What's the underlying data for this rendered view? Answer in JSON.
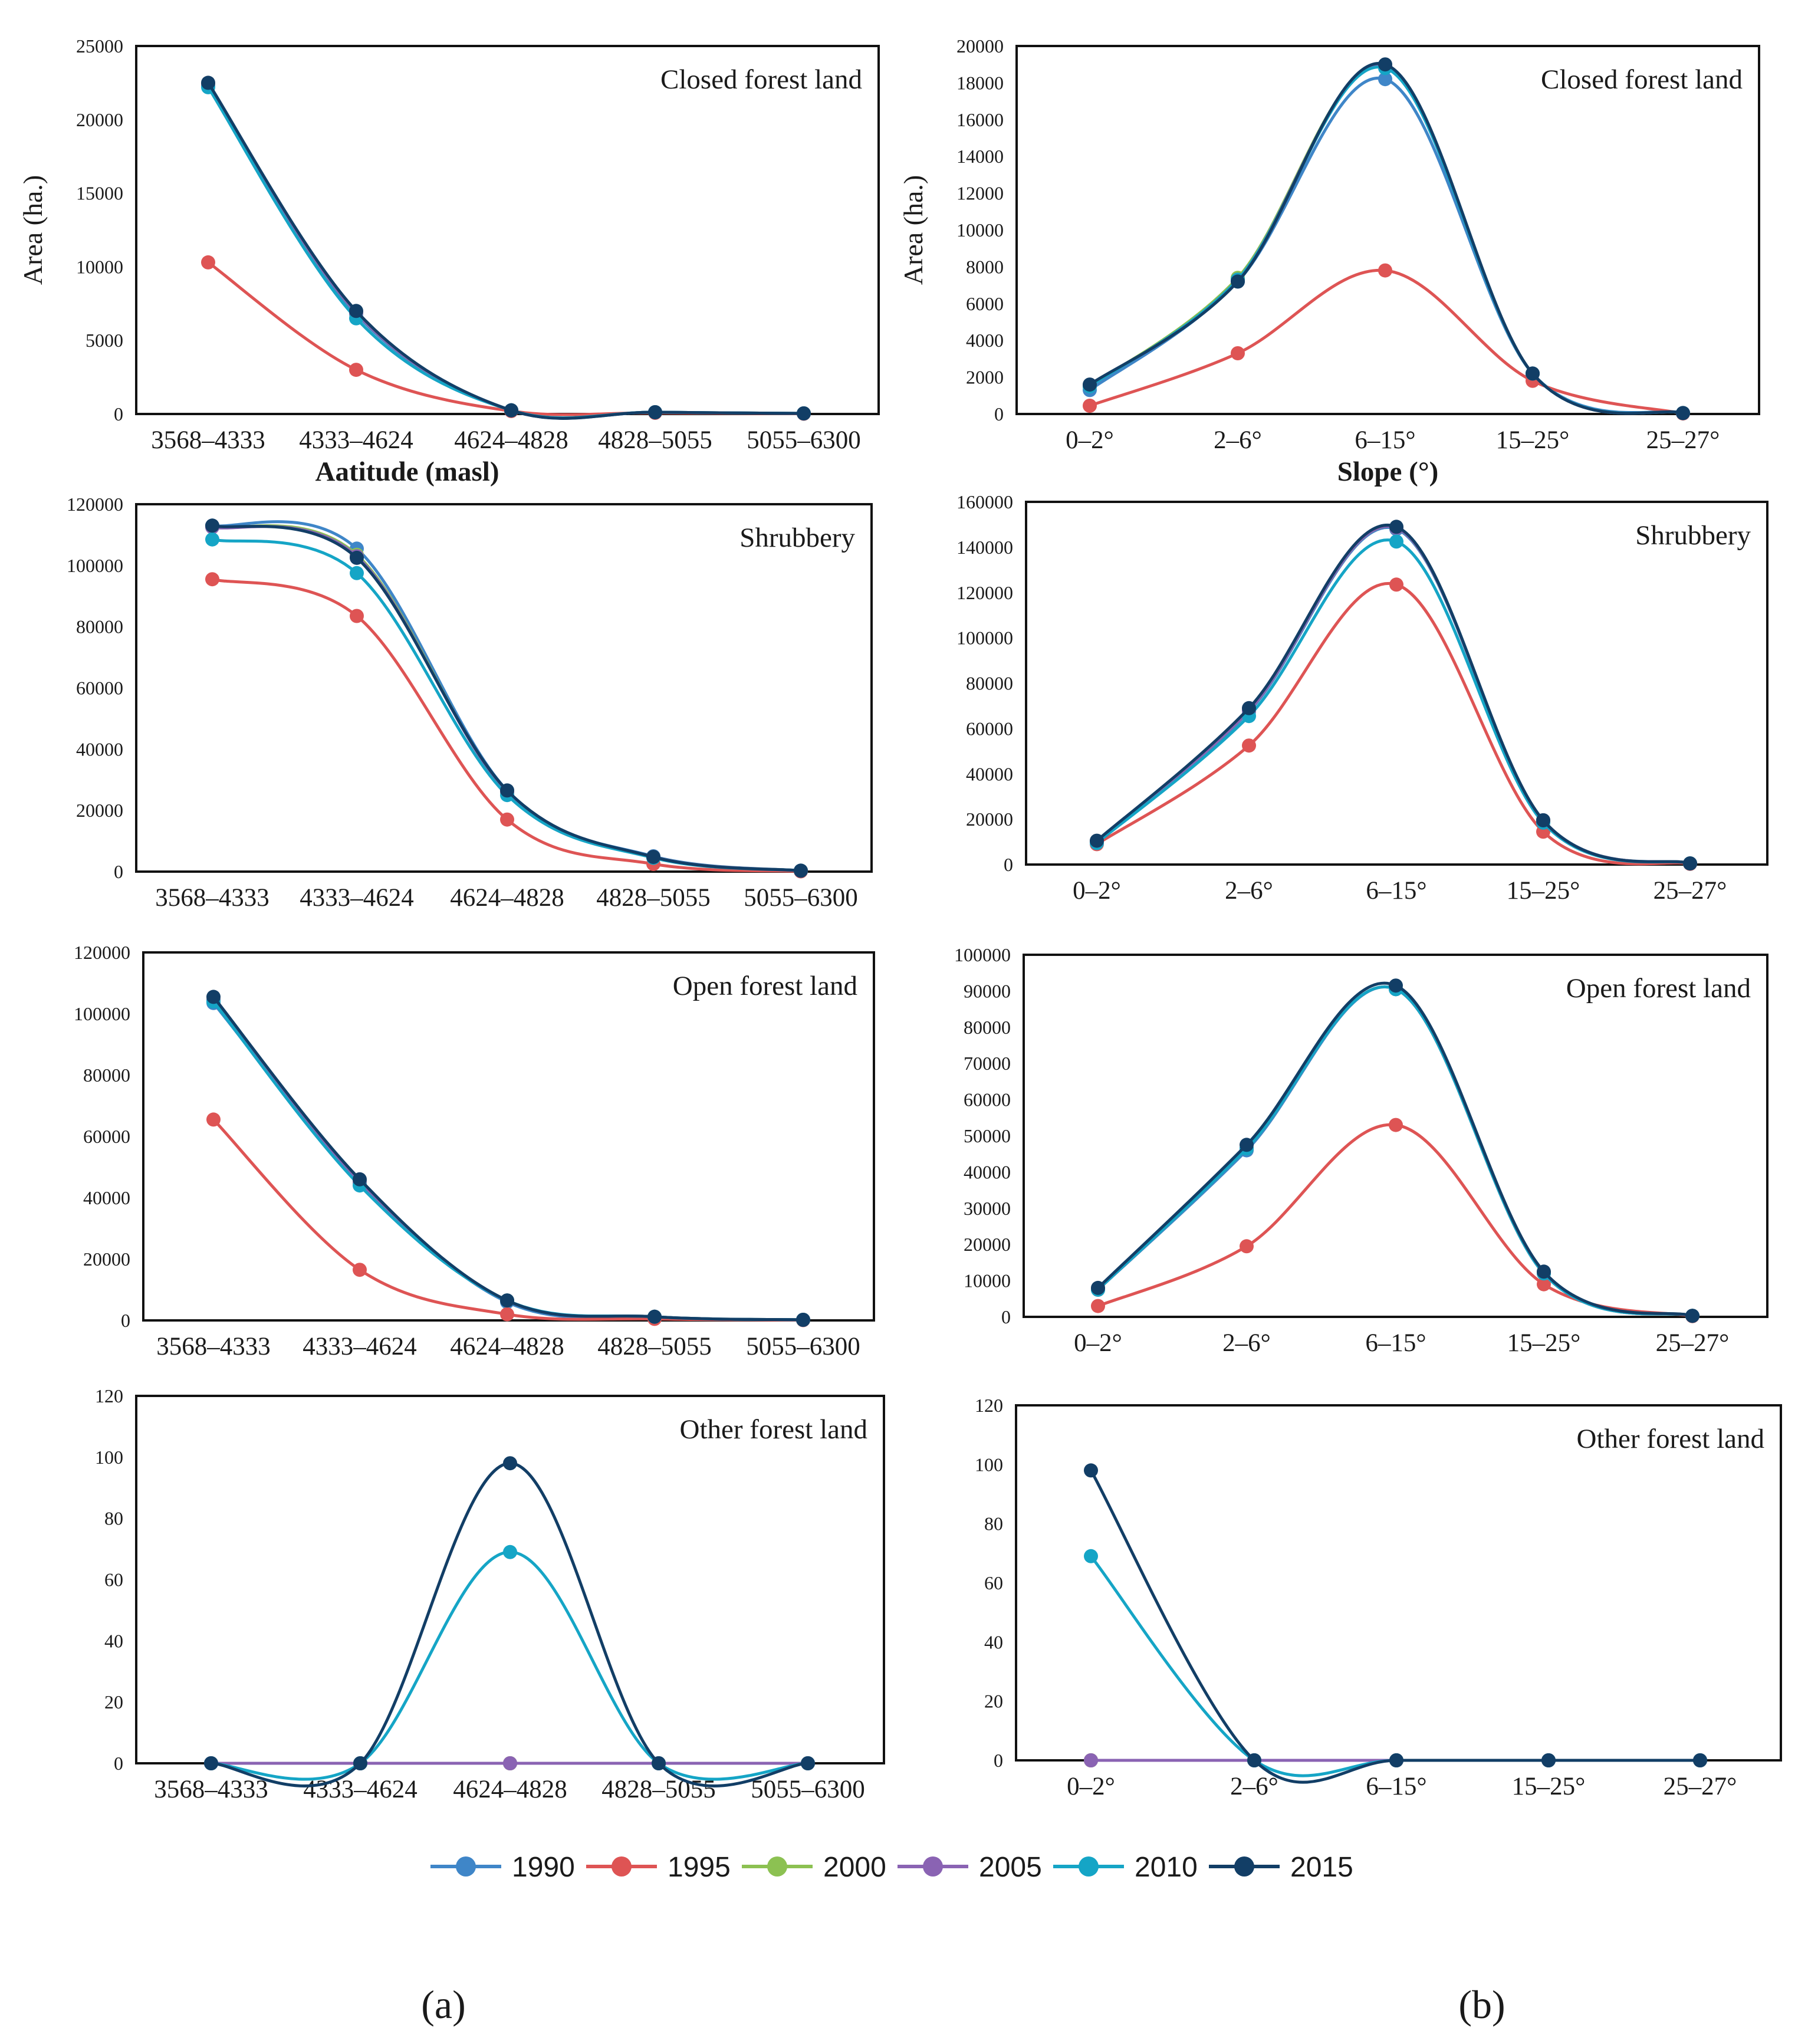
{
  "legend": {
    "items": [
      {
        "label": "1990",
        "color": "#3f86c8"
      },
      {
        "label": "1995",
        "color": "#de5454"
      },
      {
        "label": "2000",
        "color": "#8cc152"
      },
      {
        "label": "2005",
        "color": "#8a63b3"
      },
      {
        "label": "2010",
        "color": "#15a5c6"
      },
      {
        "label": "2015",
        "color": "#123e66"
      }
    ]
  },
  "panel_labels": {
    "a": "(a)",
    "b": "(b)"
  },
  "chart_data": [
    {
      "id": "a1",
      "type": "line",
      "title": "Closed forest land",
      "xlabel": "Aatitude (masl)",
      "ylabel": "Area (ha.)",
      "categories": [
        "3568–4333",
        "4333–4624",
        "4624–4828",
        "4828–5055",
        "5055–6300"
      ],
      "ylim": [
        0,
        25000
      ],
      "yticks": [
        "0",
        "5000",
        "10000",
        "15000",
        "20000",
        "25000"
      ],
      "series": [
        {
          "name": "1990",
          "values": [
            22300,
            6800,
            250,
            120,
            40
          ]
        },
        {
          "name": "1995",
          "values": [
            10300,
            3000,
            200,
            80,
            20
          ]
        },
        {
          "name": "2000",
          "values": [
            22400,
            6900,
            250,
            120,
            40
          ]
        },
        {
          "name": "2005",
          "values": [
            22400,
            6900,
            250,
            120,
            40
          ]
        },
        {
          "name": "2010",
          "values": [
            22200,
            6500,
            250,
            120,
            40
          ]
        },
        {
          "name": "2015",
          "values": [
            22500,
            7000,
            250,
            120,
            40
          ]
        }
      ]
    },
    {
      "id": "b1",
      "type": "line",
      "title": "Closed forest land",
      "xlabel": "Slope (°)",
      "ylabel": "Area (ha.)",
      "categories": [
        "0–2°",
        "2–6°",
        "6–15°",
        "15–25°",
        "25–27°"
      ],
      "ylim": [
        0,
        20000
      ],
      "yticks": [
        "0",
        "2000",
        "4000",
        "6000",
        "8000",
        "10000",
        "12000",
        "14000",
        "16000",
        "18000",
        "20000"
      ],
      "series": [
        {
          "name": "1990",
          "values": [
            1300,
            7200,
            18200,
            2200,
            50
          ]
        },
        {
          "name": "1995",
          "values": [
            450,
            3300,
            7800,
            1800,
            30
          ]
        },
        {
          "name": "2000",
          "values": [
            1500,
            7400,
            18900,
            2200,
            50
          ]
        },
        {
          "name": "2005",
          "values": [
            1500,
            7300,
            18900,
            2200,
            50
          ]
        },
        {
          "name": "2010",
          "values": [
            1500,
            7300,
            18800,
            2200,
            50
          ]
        },
        {
          "name": "2015",
          "values": [
            1600,
            7200,
            19000,
            2200,
            50
          ]
        }
      ]
    },
    {
      "id": "a2",
      "type": "line",
      "title": "Shrubbery",
      "xlabel": "",
      "ylabel": "",
      "categories": [
        "3568–4333",
        "4333–4624",
        "4624–4828",
        "4828–5055",
        "5055–6300"
      ],
      "ylim": [
        0,
        120000
      ],
      "yticks": [
        "0",
        "20000",
        "40000",
        "60000",
        "80000",
        "100000",
        "120000"
      ],
      "series": [
        {
          "name": "1990",
          "values": [
            113000,
            105500,
            26500,
            5000,
            300
          ]
        },
        {
          "name": "1995",
          "values": [
            95500,
            83500,
            17000,
            2500,
            100
          ]
        },
        {
          "name": "2000",
          "values": [
            112500,
            103500,
            26000,
            4800,
            300
          ]
        },
        {
          "name": "2005",
          "values": [
            112500,
            103000,
            26000,
            4800,
            300
          ]
        },
        {
          "name": "2010",
          "values": [
            108500,
            97500,
            25000,
            4500,
            300
          ]
        },
        {
          "name": "2015",
          "values": [
            113000,
            102500,
            26500,
            4800,
            300
          ]
        }
      ]
    },
    {
      "id": "b2",
      "type": "line",
      "title": "Shrubbery",
      "xlabel": "",
      "ylabel": "",
      "categories": [
        "0–2°",
        "2–6°",
        "6–15°",
        "15–25°",
        "25–27°"
      ],
      "ylim": [
        0,
        160000
      ],
      "yticks": [
        "0",
        "20000",
        "40000",
        "60000",
        "80000",
        "100000",
        "120000",
        "140000",
        "160000"
      ],
      "series": [
        {
          "name": "1990",
          "values": [
            10000,
            67500,
            148000,
            19500,
            500
          ]
        },
        {
          "name": "1995",
          "values": [
            9000,
            52500,
            123500,
            14500,
            300
          ]
        },
        {
          "name": "2000",
          "values": [
            10000,
            68000,
            148500,
            19500,
            500
          ]
        },
        {
          "name": "2005",
          "values": [
            10000,
            68000,
            148500,
            19500,
            500
          ]
        },
        {
          "name": "2010",
          "values": [
            9500,
            65500,
            142500,
            18500,
            500
          ]
        },
        {
          "name": "2015",
          "values": [
            10500,
            69000,
            149000,
            19500,
            500
          ]
        }
      ]
    },
    {
      "id": "a3",
      "type": "line",
      "title": "Open forest land",
      "xlabel": "",
      "ylabel": "",
      "categories": [
        "3568–4333",
        "4333–4624",
        "4624–4828",
        "4828–5055",
        "5055–6300"
      ],
      "ylim": [
        0,
        120000
      ],
      "yticks": [
        "0",
        "20000",
        "40000",
        "60000",
        "80000",
        "100000",
        "120000"
      ],
      "series": [
        {
          "name": "1990",
          "values": [
            103500,
            45500,
            6000,
            1000,
            200
          ]
        },
        {
          "name": "1995",
          "values": [
            65500,
            16500,
            2000,
            500,
            100
          ]
        },
        {
          "name": "2000",
          "values": [
            104500,
            45000,
            6500,
            1200,
            200
          ]
        },
        {
          "name": "2005",
          "values": [
            104500,
            45000,
            6500,
            1200,
            200
          ]
        },
        {
          "name": "2010",
          "values": [
            104000,
            44000,
            6500,
            1200,
            200
          ]
        },
        {
          "name": "2015",
          "values": [
            105500,
            46000,
            6500,
            1200,
            200
          ]
        }
      ]
    },
    {
      "id": "b3",
      "type": "line",
      "title": "Open forest land",
      "xlabel": "",
      "ylabel": "",
      "categories": [
        "0–2°",
        "2–6°",
        "6–15°",
        "15–25°",
        "25–27°"
      ],
      "ylim": [
        0,
        100000
      ],
      "yticks": [
        "0",
        "10000",
        "20000",
        "30000",
        "40000",
        "50000",
        "60000",
        "70000",
        "80000",
        "90000",
        "100000"
      ],
      "series": [
        {
          "name": "1990",
          "values": [
            7500,
            46000,
            90500,
            12000,
            300
          ]
        },
        {
          "name": "1995",
          "values": [
            3000,
            19500,
            53000,
            9000,
            200
          ]
        },
        {
          "name": "2000",
          "values": [
            7500,
            46500,
            90500,
            12000,
            300
          ]
        },
        {
          "name": "2005",
          "values": [
            7500,
            46500,
            90500,
            12000,
            300
          ]
        },
        {
          "name": "2010",
          "values": [
            7500,
            46500,
            90500,
            12000,
            300
          ]
        },
        {
          "name": "2015",
          "values": [
            8000,
            47500,
            91500,
            12500,
            300
          ]
        }
      ]
    },
    {
      "id": "a4",
      "type": "line",
      "title": "Other forest land",
      "xlabel": "",
      "ylabel": "",
      "categories": [
        "3568–4333",
        "4333–4624",
        "4624–4828",
        "4828–5055",
        "5055–6300"
      ],
      "ylim": [
        0,
        120
      ],
      "yticks": [
        "0",
        "20",
        "40",
        "60",
        "80",
        "100",
        "120"
      ],
      "series": [
        {
          "name": "1990",
          "values": [
            0,
            0,
            0,
            0,
            0
          ]
        },
        {
          "name": "1995",
          "values": [
            0,
            0,
            0,
            0,
            0
          ]
        },
        {
          "name": "2000",
          "values": [
            0,
            0,
            0,
            0,
            0
          ]
        },
        {
          "name": "2005",
          "values": [
            0,
            0,
            0,
            0,
            0
          ]
        },
        {
          "name": "2010",
          "values": [
            0,
            0,
            69,
            0,
            0
          ]
        },
        {
          "name": "2015",
          "values": [
            0,
            0,
            98,
            0,
            0
          ]
        }
      ]
    },
    {
      "id": "b4",
      "type": "line",
      "title": "Other forest land",
      "xlabel": "",
      "ylabel": "",
      "categories": [
        "0–2°",
        "2–6°",
        "6–15°",
        "15–25°",
        "25–27°"
      ],
      "ylim": [
        0,
        120
      ],
      "yticks": [
        "0",
        "20",
        "40",
        "60",
        "80",
        "100",
        "120"
      ],
      "series": [
        {
          "name": "1990",
          "values": [
            0,
            0,
            0,
            0,
            0
          ]
        },
        {
          "name": "1995",
          "values": [
            0,
            0,
            0,
            0,
            0
          ]
        },
        {
          "name": "2000",
          "values": [
            0,
            0,
            0,
            0,
            0
          ]
        },
        {
          "name": "2005",
          "values": [
            0,
            0,
            0,
            0,
            0
          ]
        },
        {
          "name": "2010",
          "values": [
            69,
            0,
            0,
            0,
            0
          ]
        },
        {
          "name": "2015",
          "values": [
            98,
            0,
            0,
            0,
            0
          ]
        }
      ]
    }
  ]
}
